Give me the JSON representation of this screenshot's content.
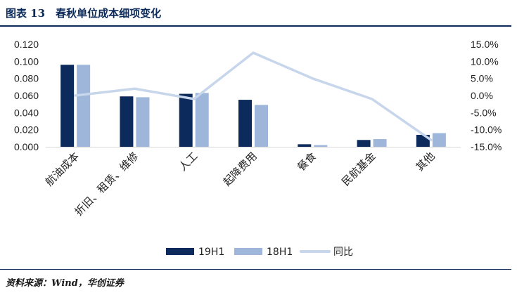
{
  "figure": {
    "title": "图表 13　春秋单位成本细项变化",
    "source": "资料来源：Wind，华创证券"
  },
  "colors": {
    "series_19h1": "#0d2a5c",
    "series_18h1": "#9db6d9",
    "series_yoy": "#c7d6ea",
    "title": "#0b2a5a"
  },
  "chart_data": {
    "type": "bar",
    "categories": [
      "航油成本",
      "折旧、租赁、维修",
      "人工",
      "起降费用",
      "餐食",
      "民航基金",
      "其他"
    ],
    "series": [
      {
        "name": "19H1",
        "type": "bar",
        "axis": "left",
        "values": [
          0.096,
          0.059,
          0.062,
          0.055,
          0.003,
          0.008,
          0.014
        ]
      },
      {
        "name": "18H1",
        "type": "bar",
        "axis": "left",
        "values": [
          0.096,
          0.058,
          0.063,
          0.049,
          0.002,
          0.009,
          0.016
        ]
      },
      {
        "name": "同比",
        "type": "line",
        "axis": "right",
        "values": [
          0.0,
          2.0,
          -1.0,
          12.5,
          5.0,
          -1.0,
          -13.0
        ]
      }
    ],
    "y_left": {
      "min": 0,
      "max": 0.12,
      "ticks": [
        "0.000",
        "0.020",
        "0.040",
        "0.060",
        "0.080",
        "0.100",
        "0.120"
      ]
    },
    "y_right": {
      "min": -15,
      "max": 15,
      "ticks": [
        "-15.0%",
        "-10.0%",
        "-5.0%",
        "0.0%",
        "5.0%",
        "10.0%",
        "15.0%"
      ]
    },
    "legend": [
      "19H1",
      "18H1",
      "同比"
    ],
    "legend_position": "bottom",
    "grid": false
  }
}
